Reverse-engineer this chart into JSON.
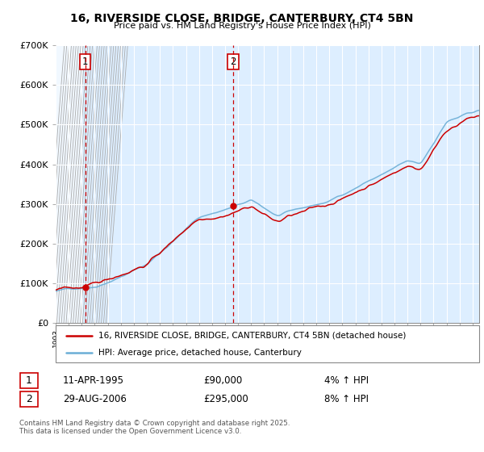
{
  "title": "16, RIVERSIDE CLOSE, BRIDGE, CANTERBURY, CT4 5BN",
  "subtitle": "Price paid vs. HM Land Registry's House Price Index (HPI)",
  "legend_line1": "16, RIVERSIDE CLOSE, BRIDGE, CANTERBURY, CT4 5BN (detached house)",
  "legend_line2": "HPI: Average price, detached house, Canterbury",
  "sale1_date": "11-APR-1995",
  "sale1_price": 90000,
  "sale1_label": "1",
  "sale1_pct": "4% ↑ HPI",
  "sale2_date": "29-AUG-2006",
  "sale2_price": 295000,
  "sale2_label": "2",
  "sale2_pct": "8% ↑ HPI",
  "footnote": "Contains HM Land Registry data © Crown copyright and database right 2025.\nThis data is licensed under the Open Government Licence v3.0.",
  "xmin": 1993.0,
  "xmax": 2025.5,
  "ymin": 0,
  "ymax": 700000,
  "hpi_color": "#6baed6",
  "price_color": "#cc0000",
  "sale1_x": 1995.27,
  "sale2_x": 2006.62,
  "plot_bg_color": "#ddeeff",
  "hatch_bg_color": "#c8c8c8"
}
